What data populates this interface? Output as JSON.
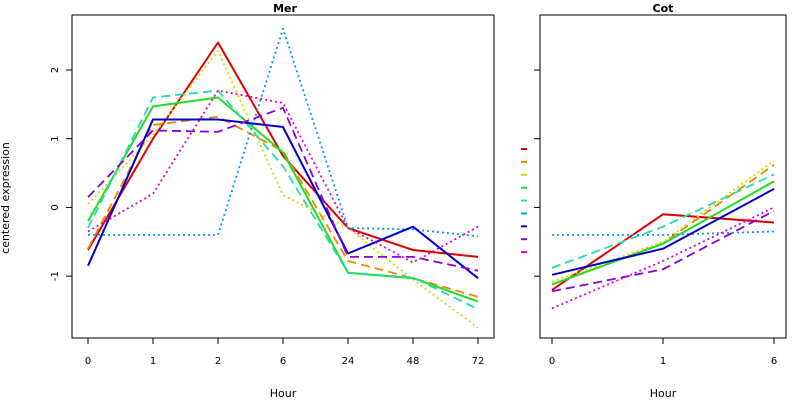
{
  "chart_data": [
    {
      "type": "line",
      "title": "Mer",
      "xlabel": "Hour",
      "ylabel": "centered expression",
      "categories": [
        "0",
        "1",
        "2",
        "6",
        "24",
        "48",
        "72"
      ],
      "ylim": [
        -1.9,
        2.8
      ],
      "yticks": [
        -1,
        0,
        1,
        2
      ],
      "series": [
        {
          "color": "#dd0000",
          "dash": "solid",
          "values": [
            -0.62,
            1.0,
            2.4,
            0.75,
            -0.3,
            -0.62,
            -0.72
          ]
        },
        {
          "color": "#ee8800",
          "dash": "dashed",
          "values": [
            -0.6,
            1.2,
            1.32,
            0.82,
            -0.78,
            -1.03,
            -1.3
          ]
        },
        {
          "color": "#ccdd00",
          "dash": "dotted",
          "values": [
            0.05,
            1.05,
            2.28,
            0.18,
            -0.3,
            -1.05,
            -1.75
          ]
        },
        {
          "color": "#22dd22",
          "dash": "solid",
          "values": [
            -0.2,
            1.47,
            1.6,
            0.8,
            -0.95,
            -1.03,
            -1.37
          ]
        },
        {
          "color": "#22ddaa",
          "dash": "dashed",
          "values": [
            -0.3,
            1.6,
            1.7,
            0.6,
            -0.95,
            -1.02,
            -1.48
          ]
        },
        {
          "color": "#0099ee",
          "dash": "dotted",
          "values": [
            -0.4,
            -0.4,
            -0.4,
            2.6,
            -0.3,
            -0.32,
            -0.42
          ]
        },
        {
          "color": "#0000cc",
          "dash": "solid",
          "values": [
            -0.85,
            1.28,
            1.28,
            1.17,
            -0.67,
            -0.28,
            -1.03
          ]
        },
        {
          "color": "#8800dd",
          "dash": "dashed",
          "values": [
            0.15,
            1.12,
            1.1,
            1.45,
            -0.72,
            -0.72,
            -0.92
          ]
        },
        {
          "color": "#dd00cc",
          "dash": "dotted",
          "values": [
            -0.35,
            0.2,
            1.7,
            1.52,
            -0.3,
            -0.8,
            -0.28
          ]
        }
      ]
    },
    {
      "type": "line",
      "title": "Cot",
      "xlabel": "Hour",
      "ylabel": "",
      "categories": [
        "0",
        "1",
        "6"
      ],
      "ylim": [
        -1.9,
        2.8
      ],
      "yticks": [
        -1,
        0,
        1,
        2
      ],
      "series": [
        {
          "color": "#dd0000",
          "dash": "solid",
          "values": [
            -1.2,
            -0.1,
            -0.22
          ]
        },
        {
          "color": "#ee8800",
          "dash": "dashed",
          "values": [
            -1.12,
            -0.52,
            0.62
          ]
        },
        {
          "color": "#ccdd00",
          "dash": "dotted",
          "values": [
            -1.08,
            -0.5,
            0.68
          ]
        },
        {
          "color": "#22dd22",
          "dash": "solid",
          "values": [
            -1.12,
            -0.53,
            0.38
          ]
        },
        {
          "color": "#22ddaa",
          "dash": "dashed",
          "values": [
            -0.88,
            -0.28,
            0.48
          ]
        },
        {
          "color": "#0099ee",
          "dash": "dotted",
          "values": [
            -0.4,
            -0.4,
            -0.35
          ]
        },
        {
          "color": "#0000cc",
          "dash": "solid",
          "values": [
            -0.98,
            -0.6,
            0.27
          ]
        },
        {
          "color": "#8800dd",
          "dash": "dashed",
          "values": [
            -1.22,
            -0.9,
            -0.05
          ]
        },
        {
          "color": "#dd00cc",
          "dash": "dotted",
          "values": [
            -1.47,
            -0.78,
            0.0
          ]
        }
      ]
    }
  ]
}
